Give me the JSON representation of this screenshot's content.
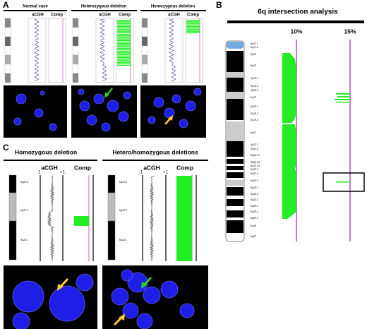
{
  "panel_a": {
    "label": "A",
    "columns": [
      {
        "title": "Normal case",
        "acgh": "aCGH",
        "comp": "Comp"
      },
      {
        "title": "Heterozygous deletion",
        "acgh": "aCGH",
        "comp": "Comp"
      },
      {
        "title": "Homozygous deletion",
        "acgh": "aCGH",
        "comp": "Comp"
      }
    ]
  },
  "panel_b": {
    "label": "B",
    "title": "6q intersection analysis",
    "thresholds": [
      "10%",
      "15%"
    ],
    "bands": [
      "6q11.1",
      "6q11.2",
      "6q12",
      "6q13",
      "6q14.1",
      "6q14.2",
      "6q14.3",
      "6q15",
      "6q16.1",
      "6q16.2",
      "6q16.3",
      "6q21",
      "6q22.1",
      "6q22.2",
      "6q22.31",
      "6q22.32",
      "6q22.33",
      "6q23.1",
      "6q23.2",
      "6q23.3",
      "6q24.1",
      "6q24.2",
      "6q24.3",
      "6q25.1",
      "6q25.2",
      "6q25.3",
      "6q26",
      "6q27"
    ]
  },
  "panel_c": {
    "label": "C",
    "columns": [
      {
        "title": "Homozygous deletion",
        "acgh": "aCGH",
        "comp": "Comp",
        "scale": [
          "-1",
          "+1"
        ],
        "bands": [
          "6q23.2",
          "6q23.3",
          "6q24.1"
        ]
      },
      {
        "title": "Hetero/homozygous deletions",
        "acgh": "aCGH",
        "comp": "Comp",
        "scale": [
          "-1",
          "+1"
        ],
        "bands": [
          "6q23.2",
          "6q23.3",
          "6q24.1"
        ]
      }
    ]
  }
}
